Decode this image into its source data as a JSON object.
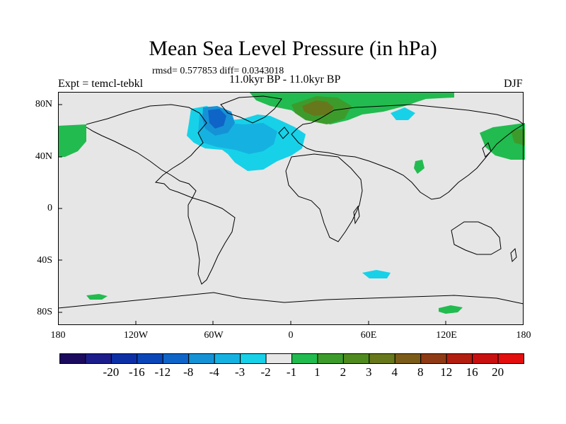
{
  "plot": {
    "title": "Mean Sea Level Pressure (in hPa)",
    "stats": "rmsd= 0.577853 diff= 0.0343018",
    "experiment": "Expt = temcl-tebkl",
    "period": "11.0kyr BP - 11.0kyr BP",
    "season": "DJF"
  },
  "axes": {
    "lat_labels": [
      "80N",
      "40N",
      "0",
      "40S",
      "80S"
    ],
    "lon_labels": [
      "180",
      "120W",
      "60W",
      "0",
      "60E",
      "120E",
      "180"
    ]
  },
  "colorbar": {
    "colors": [
      "#1b0a5e",
      "#1c1d8a",
      "#0d2fa6",
      "#0a46b8",
      "#0f64c8",
      "#1592d6",
      "#15b2e1",
      "#17d1e8",
      "#e6e6e6",
      "#22bb4f",
      "#3d9b2c",
      "#4f8a1e",
      "#66781b",
      "#7a5b18",
      "#8e3a14",
      "#b21e0f",
      "#c81010",
      "#e30e0e"
    ],
    "labels": [
      "-20",
      "-16",
      "-12",
      "-8",
      "-4",
      "-3",
      "-2",
      "-1",
      "1",
      "2",
      "3",
      "4",
      "8",
      "12",
      "16",
      "20"
    ]
  },
  "colors": {
    "land_ocean_neutral": "#e6e6e6",
    "coast": "#000000"
  }
}
